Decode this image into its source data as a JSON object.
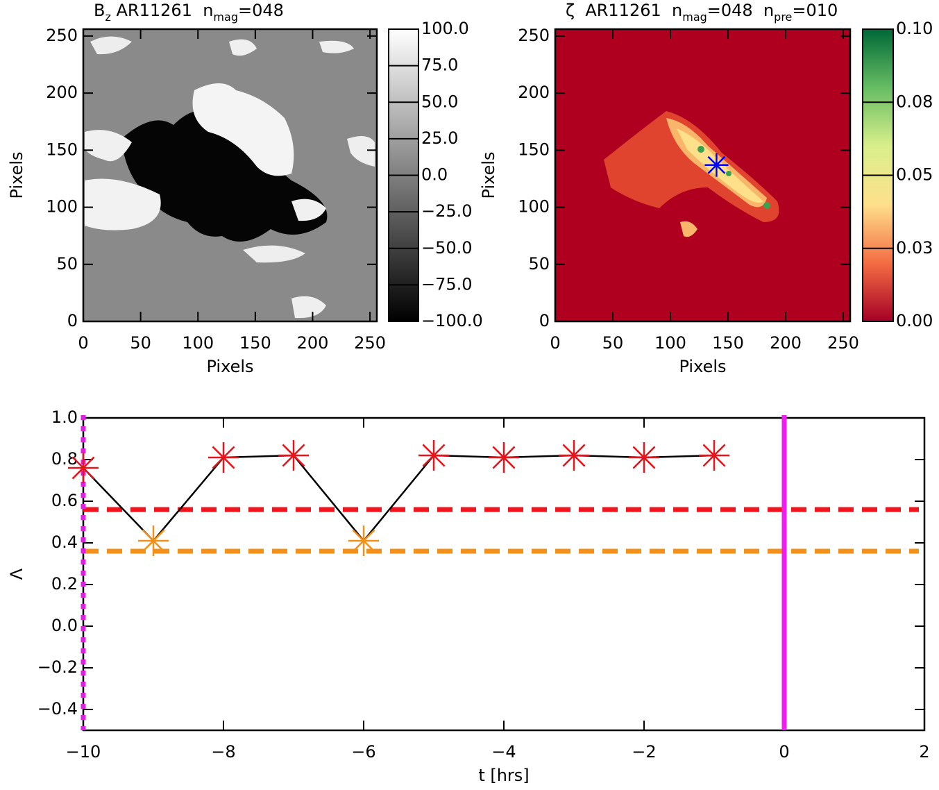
{
  "chart_data": [
    {
      "type": "image",
      "title": [
        {
          "text": "B"
        },
        {
          "text": "z",
          "sub": true
        },
        {
          "text": " AR11261  n"
        },
        {
          "text": "mag",
          "sub": true
        },
        {
          "text": "=048"
        }
      ],
      "xlabel": "Pixels",
      "ylabel": "Pixels",
      "xlim": [
        0,
        256
      ],
      "ylim": [
        0,
        256
      ],
      "xticks": [
        0,
        50,
        100,
        150,
        200,
        250
      ],
      "yticks": [
        0,
        50,
        100,
        150,
        200,
        250
      ],
      "colormap": [
        "#000000",
        "#ffffff"
      ],
      "clim": [
        -100,
        100
      ],
      "cticks": [
        {
          "value": -100,
          "label": "−100.0"
        },
        {
          "value": -75,
          "label": "−75.0"
        },
        {
          "value": -50,
          "label": "−50.0"
        },
        {
          "value": -25,
          "label": "−25.0"
        },
        {
          "value": 0,
          "label": "0.0"
        },
        {
          "value": 25,
          "label": "25.0"
        },
        {
          "value": 50,
          "label": "50.0"
        },
        {
          "value": 75,
          "label": "75.0"
        },
        {
          "value": 100,
          "label": "100.0"
        }
      ]
    },
    {
      "type": "image",
      "title": [
        {
          "text": "ζ"
        },
        {
          "text": "  AR11261  n"
        },
        {
          "text": "mag",
          "sub": true
        },
        {
          "text": "=048  n"
        },
        {
          "text": "pre",
          "sub": true
        },
        {
          "text": "=010"
        }
      ],
      "xlabel": "Pixels",
      "ylabel": "Pixels",
      "xlim": [
        0,
        256
      ],
      "ylim": [
        0,
        256
      ],
      "xticks": [
        0,
        50,
        100,
        150,
        200,
        250
      ],
      "yticks": [
        0,
        50,
        100,
        150,
        200,
        250
      ],
      "colormap": [
        "#a50026",
        "#f46d43",
        "#fee08b",
        "#d9ef8b",
        "#66bd63",
        "#006837"
      ],
      "clim": [
        0,
        0.1
      ],
      "cticks": [
        {
          "value": 0,
          "label": "0.00"
        },
        {
          "value": 0.025,
          "label": "0.03"
        },
        {
          "value": 0.05,
          "label": "0.05"
        },
        {
          "value": 0.075,
          "label": "0.08"
        },
        {
          "value": 0.1,
          "label": "0.10"
        }
      ],
      "marker": {
        "x": 140,
        "y": 137,
        "color": "#0000ff"
      }
    },
    {
      "type": "line",
      "xlabel": "t [hrs]",
      "ylabel": "Λ",
      "xlim": [
        -10,
        2
      ],
      "ylim": [
        -0.5,
        1.0
      ],
      "xticks": [
        {
          "value": -10,
          "label": "−10"
        },
        {
          "value": -8,
          "label": "−8"
        },
        {
          "value": -6,
          "label": "−6"
        },
        {
          "value": -4,
          "label": "−4"
        },
        {
          "value": -2,
          "label": "−2"
        },
        {
          "value": 0,
          "label": "0"
        },
        2
      ],
      "yticks": [
        {
          "value": -0.4,
          "label": "−0.4"
        },
        {
          "value": -0.2,
          "label": "−0.2"
        },
        {
          "value": 0,
          "label": "0.0"
        },
        0.2,
        0.4,
        0.6,
        0.8,
        {
          "value": 1,
          "label": "1.0"
        }
      ],
      "x": [
        -10,
        -9,
        -8,
        -7,
        -6,
        -5,
        -4,
        -3,
        -2,
        -1
      ],
      "series": [
        {
          "color": "#000000",
          "values": [
            0.76,
            0.41,
            0.81,
            0.82,
            0.41,
            0.82,
            0.81,
            0.82,
            0.81,
            0.82
          ],
          "point_colors": [
            "#e8141c",
            "#f39019",
            "#e8141c",
            "#e8141c",
            "#f39019",
            "#e8141c",
            "#e8141c",
            "#e8141c",
            "#e8141c",
            "#e8141c"
          ]
        }
      ],
      "hlines": [
        {
          "y": 0.56,
          "color": "#f0141c",
          "style": "dashed"
        },
        {
          "y": 0.36,
          "color": "#f39019",
          "style": "dashed"
        }
      ],
      "vlines": [
        {
          "x": 0,
          "color": "#f01cf0",
          "style": "solid"
        },
        {
          "x": -10,
          "color": "#e020e0",
          "style": "dotted"
        }
      ]
    }
  ]
}
